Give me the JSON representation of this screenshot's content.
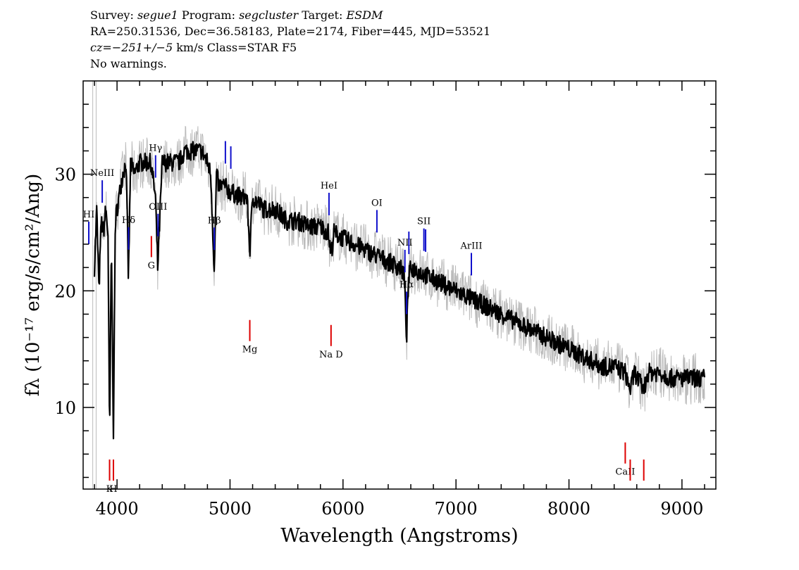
{
  "header": {
    "survey_label": "Survey:",
    "survey": "segue1",
    "program_label": "Program:",
    "program": "segcluster",
    "target_label": "Target:",
    "target": "ESDM",
    "coords": "RA=250.31536, Dec=36.58183, Plate=2174, Fiber=445, MJD=53521",
    "cz_label": "cz=",
    "cz_value": "−251+/−5",
    "cz_units_class": "km/s  Class=STAR F5",
    "warnings": "No warnings."
  },
  "chart_data": {
    "type": "line",
    "xlabel": "Wavelength (Angstroms)",
    "ylabel": "fλ (10⁻¹⁷ erg/s/cm²/Ang)",
    "xlim": [
      3700,
      9300
    ],
    "ylim": [
      3,
      38
    ],
    "xticks": [
      4000,
      5000,
      6000,
      7000,
      8000,
      9000
    ],
    "yticks": [
      10,
      20,
      30
    ],
    "grid": false,
    "colors": {
      "flux": "#000000",
      "noise": "#bbbbbb",
      "emission_lines": "#1010cc",
      "absorption_lines": "#dd0000"
    },
    "series": [
      {
        "name": "flux",
        "x": [
          3800,
          3820,
          3840,
          3860,
          3880,
          3900,
          3920,
          3934,
          3950,
          3968,
          3985,
          4000,
          4050,
          4080,
          4101,
          4120,
          4150,
          4200,
          4250,
          4300,
          4340,
          4360,
          4400,
          4450,
          4500,
          4550,
          4600,
          4650,
          4700,
          4750,
          4800,
          4830,
          4861,
          4880,
          4900,
          4950,
          5000,
          5100,
          5150,
          5175,
          5200,
          5300,
          5400,
          5500,
          5600,
          5700,
          5800,
          5870,
          5893,
          5920,
          6000,
          6100,
          6200,
          6300,
          6400,
          6500,
          6540,
          6563,
          6580,
          6600,
          6700,
          6800,
          6900,
          7000,
          7100,
          7200,
          7300,
          7400,
          7500,
          7600,
          7700,
          7800,
          7900,
          8000,
          8100,
          8200,
          8300,
          8400,
          8498,
          8542,
          8580,
          8662,
          8700,
          8800,
          8900,
          9000,
          9100,
          9200
        ],
        "y": [
          22,
          27,
          20,
          26,
          25,
          27,
          25,
          7,
          24,
          8,
          26,
          27,
          30,
          31,
          21,
          31,
          30,
          31,
          31,
          31,
          28,
          22,
          31,
          31,
          31,
          31,
          32,
          32,
          32,
          32,
          31,
          30,
          21.5,
          30,
          29,
          29,
          28.5,
          28,
          28,
          23.5,
          28,
          27,
          27,
          26,
          26,
          25.5,
          25.5,
          25,
          23,
          25,
          24.5,
          24,
          23.5,
          23,
          22.5,
          22,
          21.5,
          16,
          21,
          22,
          21.5,
          21,
          20.5,
          20,
          19.5,
          19,
          18.5,
          18,
          17.5,
          17,
          16.5,
          16,
          15.5,
          15,
          14.5,
          14,
          13.5,
          13.5,
          13,
          11.5,
          13,
          11.5,
          13,
          13,
          12.5,
          12.5,
          12.5,
          12.5
        ]
      }
    ],
    "lines": [
      {
        "label": "HI",
        "x": 3750,
        "type": "emission"
      },
      {
        "label": "NeIII",
        "x": 3869,
        "type": "emission"
      },
      {
        "label": "Hδ",
        "x": 4102,
        "type": "emission"
      },
      {
        "label": "Hγ",
        "x": 4341,
        "type": "emission"
      },
      {
        "label": "OIII",
        "x": 4363,
        "type": "emission"
      },
      {
        "label": "Hβ",
        "x": 4861,
        "type": "emission"
      },
      {
        "label": "OIII",
        "x": 4959,
        "type": "emission"
      },
      {
        "label": "OIII",
        "x": 5007,
        "type": "emission"
      },
      {
        "label": "HeI",
        "x": 5876,
        "type": "emission"
      },
      {
        "label": "OI",
        "x": 6300,
        "type": "emission"
      },
      {
        "label": "NII",
        "x": 6548,
        "type": "emission"
      },
      {
        "label": "Hα",
        "x": 6563,
        "type": "emission"
      },
      {
        "label": "NII",
        "x": 6583,
        "type": "emission"
      },
      {
        "label": "SII",
        "x": 6716,
        "type": "emission"
      },
      {
        "label": "SII",
        "x": 6731,
        "type": "emission"
      },
      {
        "label": "ArIII",
        "x": 7136,
        "type": "emission"
      },
      {
        "label": "K",
        "x": 3934,
        "type": "absorption"
      },
      {
        "label": "H",
        "x": 3968,
        "type": "absorption"
      },
      {
        "label": "G",
        "x": 4304,
        "type": "absorption"
      },
      {
        "label": "Mg",
        "x": 5175,
        "type": "absorption"
      },
      {
        "label": "Na D",
        "x": 5894,
        "type": "absorption"
      },
      {
        "label": "CaII",
        "x": 8498,
        "type": "absorption"
      },
      {
        "label": "CaII",
        "x": 8542,
        "type": "absorption"
      },
      {
        "label": "CaII",
        "x": 8662,
        "type": "absorption"
      }
    ]
  }
}
